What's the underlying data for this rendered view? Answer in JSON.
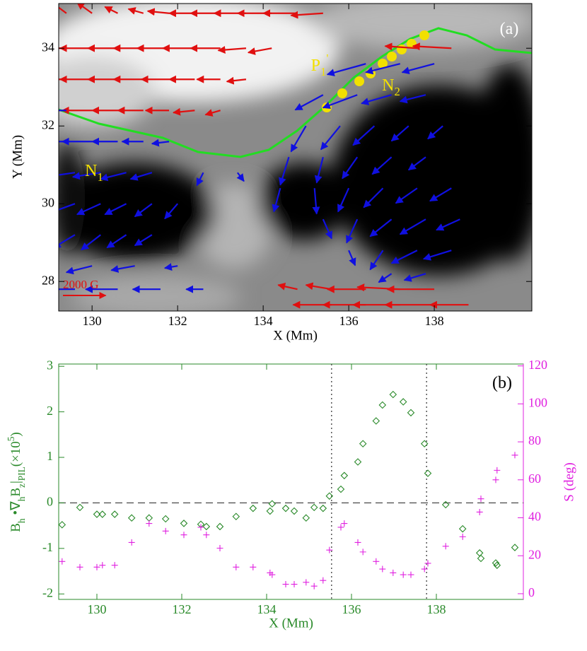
{
  "chart_data": [
    {
      "type": "quiver",
      "xlabel": "X (Mm)",
      "ylabel": "Y (Mm)",
      "xlim": [
        129.22,
        140.28
      ],
      "ylim": [
        27.24,
        35.15
      ],
      "xticks": [
        130,
        132,
        134,
        136,
        138
      ],
      "yticks": [
        28,
        30,
        32,
        34
      ],
      "reference": {
        "value": 2000,
        "label": "2000 G",
        "color": "#e01010"
      },
      "annotations": [
        {
          "parts": [
            "(a)"
          ]
        },
        {
          "parts": [
            "P",
            "1",
            "'"
          ]
        },
        {
          "parts": [
            "N",
            "2"
          ]
        },
        {
          "parts": [
            "N",
            "1"
          ]
        }
      ],
      "series": [
        {
          "color": "#e01010",
          "x": [
            129.4,
            130.0,
            130.6,
            131.2,
            131.8,
            132.4,
            133.0,
            133.6,
            134.2,
            134.8,
            135.4,
            129.4,
            130.0,
            130.6,
            131.2,
            131.8,
            132.4,
            133.0,
            133.6,
            134.2,
            137.6,
            138.4,
            129.4,
            130.0,
            130.6,
            131.2,
            131.8,
            132.4,
            133.0,
            133.6,
            130.0,
            130.6,
            131.2,
            131.8,
            132.4,
            133.0,
            134.8,
            135.6,
            136.4,
            137.2,
            138.0,
            135.6,
            136.4,
            137.2,
            138.0,
            138.8
          ],
          "y": [
            34.9,
            34.9,
            34.9,
            34.9,
            34.9,
            34.9,
            34.9,
            34.9,
            34.9,
            34.9,
            34.9,
            34.0,
            34.0,
            34.0,
            34.0,
            34.0,
            34.0,
            34.0,
            34.0,
            34.0,
            34.0,
            34.0,
            33.2,
            33.2,
            33.2,
            33.2,
            33.2,
            33.2,
            33.2,
            33.2,
            32.4,
            32.4,
            32.4,
            32.4,
            32.4,
            32.4,
            27.8,
            27.8,
            27.8,
            27.8,
            27.8,
            27.4,
            27.4,
            27.4,
            27.4,
            27.4
          ],
          "u": [
            -800,
            -700,
            -600,
            -700,
            -1000,
            -1200,
            -1400,
            -1500,
            -1600,
            -1600,
            -1500,
            -1500,
            -1500,
            -1400,
            -1400,
            -1500,
            -1500,
            -1400,
            -1300,
            -1100,
            -1500,
            -1800,
            -1500,
            -1500,
            -1400,
            -1400,
            -1300,
            -1200,
            -1100,
            -900,
            -1400,
            -1200,
            -1200,
            -1100,
            -1000,
            -700,
            -900,
            -1200,
            -1800,
            -2000,
            -2200,
            -1800,
            -2000,
            -2200,
            -2300,
            -1800
          ],
          "v": [
            600,
            500,
            300,
            200,
            100,
            0,
            0,
            0,
            0,
            0,
            -100,
            0,
            0,
            0,
            0,
            0,
            0,
            0,
            -100,
            -200,
            100,
            100,
            0,
            0,
            0,
            0,
            0,
            0,
            0,
            -100,
            0,
            0,
            0,
            0,
            -100,
            -200,
            200,
            200,
            0,
            100,
            0,
            0,
            0,
            0,
            0,
            0
          ]
        },
        {
          "color": "#1010e0",
          "x": [
            129.4,
            129.4,
            130.0,
            130.6,
            131.2,
            131.8,
            129.6,
            130.2,
            130.8,
            131.4,
            132.6,
            133.4,
            129.6,
            130.2,
            130.8,
            131.4,
            132.0,
            129.6,
            130.2,
            130.8,
            131.4,
            130.0,
            131.0,
            132.0,
            129.6,
            130.6,
            131.6,
            132.6,
            136.4,
            137.2,
            138.0,
            135.4,
            136.2,
            137.0,
            137.8,
            135.0,
            135.8,
            136.6,
            137.4,
            138.2,
            134.6,
            135.4,
            136.2,
            137.0,
            137.8,
            134.4,
            135.2,
            136.0,
            136.8,
            137.6,
            138.4,
            135.4,
            136.2,
            137.0,
            137.8,
            138.6,
            136.0,
            136.8,
            137.6,
            138.4,
            137.0,
            137.8
          ],
          "y": [
            32.4,
            31.6,
            31.6,
            31.6,
            31.6,
            31.6,
            30.8,
            30.8,
            30.8,
            30.8,
            30.8,
            30.8,
            30.0,
            30.0,
            30.0,
            30.0,
            30.0,
            29.2,
            29.2,
            29.2,
            29.2,
            28.4,
            28.4,
            28.4,
            27.8,
            27.8,
            27.8,
            27.8,
            33.6,
            33.6,
            33.6,
            32.8,
            32.8,
            32.8,
            32.8,
            32.0,
            32.0,
            32.0,
            32.0,
            32.0,
            31.2,
            31.2,
            31.2,
            31.2,
            31.2,
            30.4,
            30.4,
            30.4,
            30.4,
            30.4,
            30.4,
            29.6,
            29.6,
            29.6,
            29.6,
            29.6,
            28.8,
            28.8,
            28.8,
            28.8,
            28.2,
            28.2
          ],
          "u": [
            -1000,
            -1400,
            -1400,
            -1200,
            -1000,
            -800,
            -1400,
            -1300,
            -1200,
            -1000,
            -300,
            300,
            -1100,
            -1100,
            -1000,
            -800,
            -600,
            -1000,
            -900,
            -900,
            -800,
            -1200,
            -1100,
            -600,
            -1600,
            -1500,
            -1300,
            -800,
            -1800,
            -1600,
            -1500,
            -1300,
            -1600,
            -1400,
            -1200,
            -700,
            -900,
            -1000,
            -800,
            -700,
            -400,
            -300,
            -700,
            -900,
            -800,
            -300,
            100,
            -500,
            -900,
            -1000,
            -1000,
            400,
            -500,
            -1000,
            -1200,
            -1100,
            300,
            -600,
            -1200,
            -1300,
            -600,
            -1000
          ],
          "v": [
            0,
            0,
            0,
            0,
            0,
            -100,
            -200,
            -200,
            -300,
            -300,
            -600,
            -400,
            -400,
            -500,
            -500,
            -600,
            -700,
            -600,
            -700,
            -600,
            -500,
            -300,
            -200,
            -100,
            0,
            0,
            0,
            0,
            -500,
            -400,
            -400,
            -700,
            -600,
            -400,
            -300,
            -1200,
            -1100,
            -900,
            -700,
            -600,
            -1300,
            -1200,
            -1000,
            -800,
            -600,
            -1100,
            -1200,
            -1100,
            -900,
            -700,
            -600,
            -900,
            -1100,
            -800,
            -700,
            -500,
            -700,
            -900,
            -600,
            -400,
            -400,
            -300
          ]
        }
      ]
    },
    {
      "type": "scatter",
      "xlabel": "X (Mm)",
      "y2label": "S (deg)",
      "ylabel_parts": [
        "B",
        "h",
        " •∇",
        "h",
        "B",
        "z",
        "|",
        "PIL",
        "(×10",
        "5",
        ")"
      ],
      "annotations": [
        {
          "parts": [
            "(b)"
          ]
        }
      ],
      "xlim": [
        129.1,
        140.05
      ],
      "ylim": [
        -2.12,
        3.05
      ],
      "y2lim": [
        -3,
        121
      ],
      "xticks": [
        130,
        132,
        134,
        136,
        138
      ],
      "yticks": [
        -2,
        -1,
        0,
        1,
        2,
        3
      ],
      "y2ticks": [
        0,
        20,
        40,
        60,
        80,
        100,
        120
      ],
      "axis_color": "#2a8a2a",
      "axis2_color": "#e020e0",
      "hlines": [
        0
      ],
      "vlines": [
        135.53,
        137.77
      ],
      "series": [
        {
          "color": "#2a8a2a",
          "marker": "diamond",
          "x": [
            129.18,
            129.6,
            130,
            130.13,
            130.42,
            130.82,
            131.23,
            131.62,
            132.05,
            132.45,
            132.58,
            132.9,
            133.28,
            133.68,
            134.08,
            134.13,
            134.45,
            134.65,
            134.93,
            135.12,
            135.33,
            135.48,
            135.75,
            135.83,
            136.15,
            136.27,
            136.58,
            136.73,
            136.98,
            137.22,
            137.4,
            137.72,
            137.8,
            138.22,
            138.62,
            139.02,
            139.05,
            139.4,
            139.43,
            139.85
          ],
          "values": [
            -0.48,
            -0.1,
            -0.25,
            -0.25,
            -0.25,
            -0.33,
            -0.33,
            -0.35,
            -0.45,
            -0.47,
            -0.52,
            -0.52,
            -0.3,
            -0.12,
            -0.18,
            -0.02,
            -0.12,
            -0.18,
            -0.33,
            -0.1,
            -0.12,
            0.15,
            0.3,
            0.6,
            0.9,
            1.3,
            1.8,
            2.15,
            2.38,
            2.22,
            1.98,
            1.3,
            0.65,
            -0.04,
            -0.57,
            -1.1,
            -1.22,
            -1.32,
            -1.37,
            -0.98
          ]
        },
        {
          "color": "#e020e0",
          "marker": "plus",
          "axis": "y2",
          "x": [
            129.18,
            129.6,
            130,
            130.13,
            130.42,
            130.82,
            131.23,
            131.62,
            132.05,
            132.45,
            132.58,
            132.9,
            133.28,
            133.68,
            134.08,
            134.13,
            134.45,
            134.65,
            134.93,
            135.12,
            135.33,
            135.48,
            135.75,
            135.83,
            136.15,
            136.27,
            136.58,
            136.73,
            136.98,
            137.22,
            137.4,
            137.72,
            137.8,
            138.22,
            138.62,
            139.02,
            139.05,
            139.4,
            139.43,
            139.85
          ],
          "values": [
            17,
            14,
            14,
            15,
            15,
            27,
            37,
            33,
            31,
            35,
            31,
            24,
            14,
            14,
            11,
            10,
            5,
            5,
            6,
            4,
            7,
            23,
            35,
            37,
            27,
            22,
            17,
            13,
            11,
            10,
            10,
            13,
            16,
            25,
            30,
            43,
            50,
            60,
            65,
            73
          ]
        }
      ]
    }
  ]
}
